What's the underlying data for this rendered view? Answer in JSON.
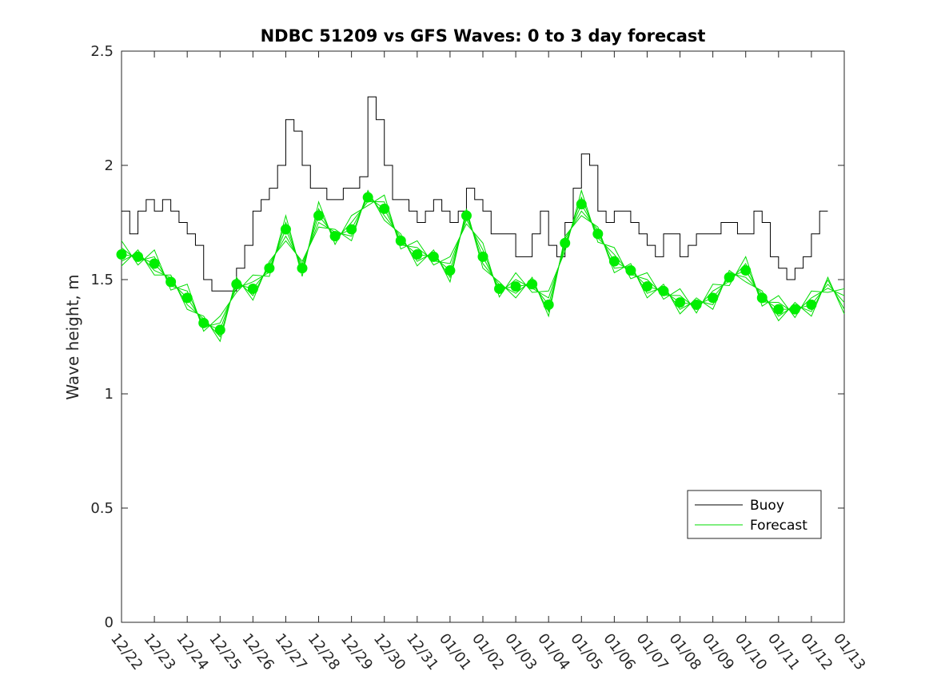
{
  "chart_data": {
    "type": "line",
    "title": "NDBC 51209 vs GFS Waves: 0 to 3 day forecast",
    "xlabel": "",
    "ylabel": "Wave height, m",
    "ylim": [
      0,
      2.5
    ],
    "yticks": [
      0,
      0.5,
      1,
      1.5,
      2,
      2.5
    ],
    "ytick_labels": [
      "0",
      "0.5",
      "1",
      "1.5",
      "2",
      "2.5"
    ],
    "xlim_days": [
      0,
      22
    ],
    "xtick_labels": [
      "12/22",
      "12/23",
      "12/24",
      "12/25",
      "12/26",
      "12/27",
      "12/28",
      "12/29",
      "12/30",
      "12/31",
      "01/01",
      "01/02",
      "01/03",
      "01/04",
      "01/05",
      "01/06",
      "01/07",
      "01/08",
      "01/09",
      "01/10",
      "01/11",
      "01/12",
      "01/13"
    ],
    "legend": {
      "position": "lower-right",
      "entries": [
        {
          "label": "Buoy",
          "color": "#000000"
        },
        {
          "label": "Forecast",
          "color": "#00dd00"
        }
      ]
    },
    "colors": {
      "buoy": "#000000",
      "forecast": "#00dd00",
      "markers": "#00ee00"
    },
    "series": [
      {
        "name": "Buoy",
        "x": [
          0,
          0.25,
          0.5,
          0.75,
          1,
          1.25,
          1.5,
          1.75,
          2,
          2.25,
          2.5,
          2.75,
          3,
          3.25,
          3.5,
          3.75,
          4,
          4.25,
          4.5,
          4.75,
          5,
          5.25,
          5.5,
          5.75,
          6,
          6.25,
          6.5,
          6.75,
          7,
          7.25,
          7.5,
          7.75,
          8,
          8.25,
          8.5,
          8.75,
          9,
          9.25,
          9.5,
          9.75,
          10,
          10.25,
          10.5,
          10.75,
          11,
          11.25,
          11.5,
          11.75,
          12,
          12.25,
          12.5,
          12.75,
          13,
          13.25,
          13.5,
          13.75,
          14,
          14.25,
          14.5,
          14.75,
          15,
          15.25,
          15.5,
          15.75,
          16,
          16.25,
          16.5,
          16.75,
          17,
          17.25,
          17.5,
          17.75,
          18,
          18.25,
          18.5,
          18.75,
          19,
          19.25,
          19.5,
          19.75,
          20,
          20.25,
          20.5,
          20.75,
          21,
          21.25
        ],
        "y": [
          1.8,
          1.7,
          1.8,
          1.85,
          1.8,
          1.85,
          1.8,
          1.75,
          1.7,
          1.65,
          1.5,
          1.45,
          1.45,
          1.45,
          1.55,
          1.65,
          1.8,
          1.85,
          1.9,
          2.0,
          2.2,
          2.15,
          2.0,
          1.9,
          1.9,
          1.85,
          1.85,
          1.9,
          1.9,
          1.95,
          2.3,
          2.2,
          2.0,
          1.85,
          1.85,
          1.8,
          1.75,
          1.8,
          1.85,
          1.8,
          1.75,
          1.8,
          1.9,
          1.85,
          1.8,
          1.7,
          1.7,
          1.7,
          1.6,
          1.6,
          1.7,
          1.8,
          1.65,
          1.6,
          1.75,
          1.9,
          2.05,
          2.0,
          1.8,
          1.75,
          1.8,
          1.8,
          1.75,
          1.7,
          1.65,
          1.6,
          1.7,
          1.7,
          1.6,
          1.65,
          1.7,
          1.7,
          1.7,
          1.75,
          1.75,
          1.7,
          1.7,
          1.8,
          1.75,
          1.6,
          1.55,
          1.5,
          1.55,
          1.6,
          1.7,
          1.8
        ]
      },
      {
        "name": "Forecast",
        "x": [
          0,
          0.5,
          1,
          1.5,
          2,
          2.5,
          3,
          3.5,
          4,
          4.5,
          5,
          5.5,
          6,
          6.5,
          7,
          7.5,
          8,
          8.5,
          9,
          9.5,
          10,
          10.5,
          11,
          11.5,
          12,
          12.5,
          13,
          13.5,
          14,
          14.5,
          15,
          15.5,
          16,
          16.5,
          17,
          17.5,
          18,
          18.5,
          19,
          19.5,
          20,
          20.5,
          21,
          21.5,
          22
        ],
        "y": [
          1.61,
          1.6,
          1.57,
          1.49,
          1.42,
          1.31,
          1.28,
          1.48,
          1.46,
          1.55,
          1.72,
          1.55,
          1.78,
          1.69,
          1.72,
          1.86,
          1.81,
          1.67,
          1.61,
          1.6,
          1.54,
          1.78,
          1.6,
          1.46,
          1.47,
          1.48,
          1.39,
          1.66,
          1.83,
          1.7,
          1.58,
          1.54,
          1.47,
          1.45,
          1.4,
          1.39,
          1.42,
          1.51,
          1.54,
          1.42,
          1.37,
          1.37,
          1.39,
          1.48,
          1.4
        ]
      },
      {
        "name": "Forecast markers",
        "x": [
          0,
          0.5,
          1,
          1.5,
          2,
          2.5,
          3,
          3.5,
          4,
          4.5,
          5,
          5.5,
          6,
          6.5,
          7,
          7.5,
          8,
          8.5,
          9,
          9.5,
          10,
          10.5,
          11,
          11.5,
          12,
          12.5,
          13,
          13.5,
          14,
          14.5,
          15,
          15.5,
          16,
          16.5,
          17,
          17.5,
          18,
          18.5,
          19,
          19.5,
          20,
          20.5,
          21
        ],
        "y": [
          1.61,
          1.6,
          1.57,
          1.49,
          1.42,
          1.31,
          1.28,
          1.48,
          1.46,
          1.55,
          1.72,
          1.55,
          1.78,
          1.69,
          1.72,
          1.86,
          1.81,
          1.67,
          1.61,
          1.6,
          1.54,
          1.78,
          1.6,
          1.46,
          1.47,
          1.48,
          1.39,
          1.66,
          1.83,
          1.7,
          1.58,
          1.54,
          1.47,
          1.45,
          1.4,
          1.39,
          1.42,
          1.51,
          1.54,
          1.42,
          1.37,
          1.37,
          1.39
        ]
      }
    ]
  }
}
